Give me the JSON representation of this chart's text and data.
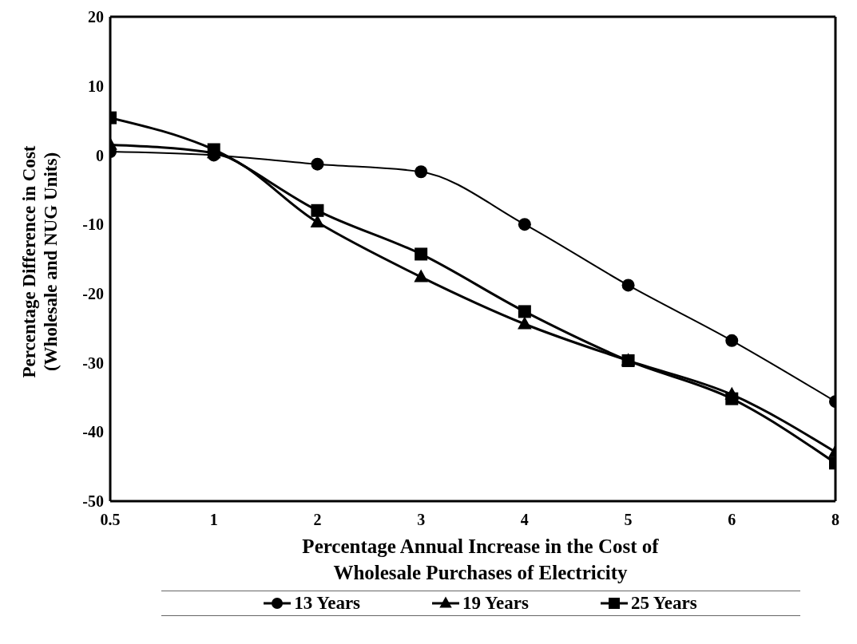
{
  "chart_data": {
    "type": "line",
    "xlabel": "Percentage Annual Increase in the Cost of Wholesale Purchases of Electricity",
    "ylabel": "Percentage Difference in Cost (Wholesale and NUG Units)",
    "categories": [
      "0.5",
      "1",
      "2",
      "3",
      "4",
      "5",
      "6",
      "8"
    ],
    "series": [
      {
        "name": "13 Years",
        "color": "#000000",
        "marker": "circle",
        "values": [
          0.5,
          0,
          -1.3,
          -2.4,
          -10,
          -18.8,
          -26.8,
          -35.6
        ]
      },
      {
        "name": "19 Years",
        "color": "#000000",
        "marker": "triangle",
        "values": [
          1.5,
          0.3,
          -9.7,
          -17.6,
          -24.4,
          -29.7,
          -34.6,
          -42.9
        ]
      },
      {
        "name": "25 Years",
        "color": "#000000",
        "marker": "square",
        "values": [
          5.4,
          0.8,
          -8,
          -14.3,
          -22.6,
          -29.7,
          -35.2,
          -44.5
        ]
      }
    ],
    "ylim": [
      -50,
      20
    ],
    "yticks": [
      -50,
      -40,
      -30,
      -20,
      -10,
      0,
      10,
      20
    ],
    "grid": false,
    "legend": "bottom",
    "line_style": "solid"
  }
}
